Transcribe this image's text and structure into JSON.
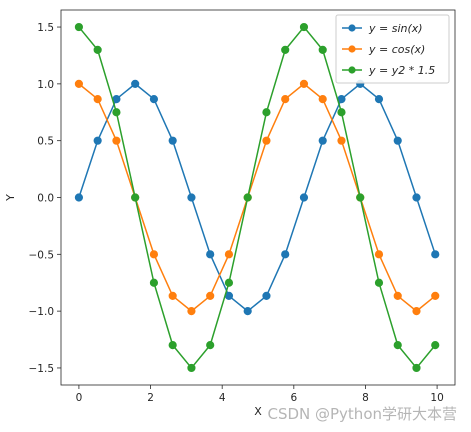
{
  "chart_data": {
    "type": "line",
    "xlabel": "X",
    "ylabel": "Y",
    "xlim": [
      -0.5,
      10.5
    ],
    "ylim": [
      -1.65,
      1.65
    ],
    "xticks": [
      0,
      2,
      4,
      6,
      8,
      10
    ],
    "xtick_labels": [
      "0",
      "2",
      "4",
      "6",
      "8",
      "10"
    ],
    "yticks": [
      1.5,
      1.0,
      0.5,
      0.0,
      -0.5,
      -1.0,
      -1.5
    ],
    "ytick_labels": [
      "1.5",
      "1.0",
      "0.5",
      "0.0",
      "−0.5",
      "−1.0",
      "−1.5"
    ],
    "grid": false,
    "legend_position": "top-right",
    "x": [
      0,
      0.5236,
      1.0472,
      1.5708,
      2.0944,
      2.618,
      3.1416,
      3.6652,
      4.1888,
      4.7124,
      5.236,
      5.7596,
      6.2832,
      6.8068,
      7.3304,
      7.854,
      8.3776,
      8.9012,
      9.4248,
      9.9484
    ],
    "series": [
      {
        "name": "y = sin(x)",
        "color": "#1f77b4",
        "values": [
          0.0,
          0.5,
          0.866,
          1.0,
          0.866,
          0.5,
          0.0,
          -0.5,
          -0.866,
          -1.0,
          -0.866,
          -0.5,
          0.0,
          0.5,
          0.866,
          1.0,
          0.866,
          0.5,
          0.0,
          -0.5
        ]
      },
      {
        "name": "y = cos(x)",
        "color": "#ff7f0e",
        "values": [
          1.0,
          0.866,
          0.5,
          0.0,
          -0.5,
          -0.866,
          -1.0,
          -0.866,
          -0.5,
          0.0,
          0.5,
          0.866,
          1.0,
          0.866,
          0.5,
          0.0,
          -0.5,
          -0.866,
          -1.0,
          -0.866
        ]
      },
      {
        "name": "y = y2 * 1.5",
        "color": "#2ca02c",
        "values": [
          1.5,
          1.299,
          0.75,
          0.0,
          -0.75,
          -1.299,
          -1.5,
          -1.299,
          -0.75,
          0.0,
          0.75,
          1.299,
          1.5,
          1.299,
          0.75,
          0.0,
          -0.75,
          -1.299,
          -1.5,
          -1.299
        ]
      }
    ]
  },
  "legend": {
    "labels": [
      "y = sin(x)",
      "y = cos(x)",
      "y = y2 * 1.5"
    ]
  },
  "watermark": "CSDN @Python学研大本营"
}
